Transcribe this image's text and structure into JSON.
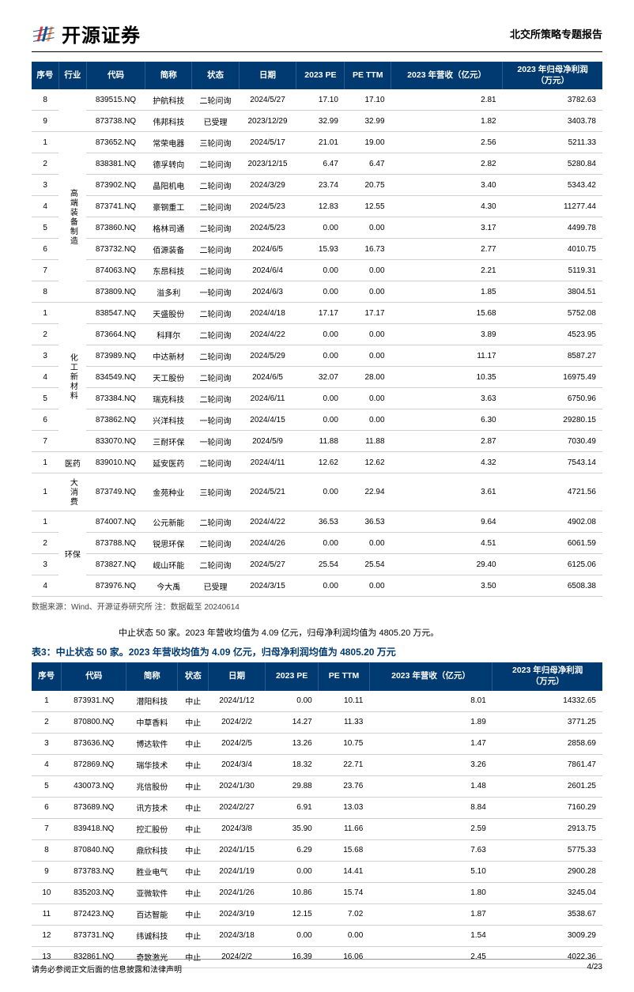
{
  "header": {
    "logo_text": "开源证券",
    "report_title": "北交所策略专题报告",
    "logo_colors": {
      "red": "#e63946",
      "blue": "#1d4e89",
      "orange": "#f4a261"
    }
  },
  "table1": {
    "header_bg": "#003a70",
    "header_color": "#ffffff",
    "columns": [
      "序号",
      "行业",
      "代码",
      "简称",
      "状态",
      "日期",
      "2023 PE",
      "PE TTM",
      "2023 年营收（亿元）",
      "2023 年归母净利润（万元）"
    ],
    "groups": [
      {
        "industry_span": null,
        "industry": "",
        "rows": [
          {
            "seq": "8",
            "code": "839515.NQ",
            "name": "护航科技",
            "status": "二轮问询",
            "date": "2024/5/27",
            "pe": "17.10",
            "ttm": "17.10",
            "rev": "2.81",
            "profit": "3782.63"
          },
          {
            "seq": "9",
            "code": "873738.NQ",
            "name": "伟邦科技",
            "status": "已受理",
            "date": "2023/12/29",
            "pe": "32.99",
            "ttm": "32.99",
            "rev": "1.82",
            "profit": "3403.78"
          }
        ]
      },
      {
        "industry": "高端装备制造",
        "rows": [
          {
            "seq": "1",
            "code": "873652.NQ",
            "name": "常荣电器",
            "status": "三轮问询",
            "date": "2024/5/17",
            "pe": "21.01",
            "ttm": "19.00",
            "rev": "2.56",
            "profit": "5211.33"
          },
          {
            "seq": "2",
            "code": "838381.NQ",
            "name": "德孚转向",
            "status": "二轮问询",
            "date": "2023/12/15",
            "pe": "6.47",
            "ttm": "6.47",
            "rev": "2.82",
            "profit": "5280.84"
          },
          {
            "seq": "3",
            "code": "873902.NQ",
            "name": "晶阳机电",
            "status": "二轮问询",
            "date": "2024/3/29",
            "pe": "23.74",
            "ttm": "20.75",
            "rev": "3.40",
            "profit": "5343.42"
          },
          {
            "seq": "4",
            "code": "873741.NQ",
            "name": "豪钢重工",
            "status": "二轮问询",
            "date": "2024/5/23",
            "pe": "12.83",
            "ttm": "12.55",
            "rev": "4.30",
            "profit": "11277.44"
          },
          {
            "seq": "5",
            "code": "873860.NQ",
            "name": "格林司通",
            "status": "二轮问询",
            "date": "2024/5/23",
            "pe": "0.00",
            "ttm": "0.00",
            "rev": "3.17",
            "profit": "4499.78"
          },
          {
            "seq": "6",
            "code": "873732.NQ",
            "name": "佰源装备",
            "status": "二轮问询",
            "date": "2024/6/5",
            "pe": "15.93",
            "ttm": "16.73",
            "rev": "2.77",
            "profit": "4010.75"
          },
          {
            "seq": "7",
            "code": "874063.NQ",
            "name": "东昂科技",
            "status": "二轮问询",
            "date": "2024/6/4",
            "pe": "0.00",
            "ttm": "0.00",
            "rev": "2.21",
            "profit": "5119.31"
          },
          {
            "seq": "8",
            "code": "873809.NQ",
            "name": "溢多利",
            "status": "一轮问询",
            "date": "2024/6/3",
            "pe": "0.00",
            "ttm": "0.00",
            "rev": "1.85",
            "profit": "3804.51"
          }
        ]
      },
      {
        "industry": "化工新材料",
        "rows": [
          {
            "seq": "1",
            "code": "838547.NQ",
            "name": "天盛股份",
            "status": "二轮问询",
            "date": "2024/4/18",
            "pe": "17.17",
            "ttm": "17.17",
            "rev": "15.68",
            "profit": "5752.08"
          },
          {
            "seq": "2",
            "code": "873664.NQ",
            "name": "科拜尔",
            "status": "二轮问询",
            "date": "2024/4/22",
            "pe": "0.00",
            "ttm": "0.00",
            "rev": "3.89",
            "profit": "4523.95"
          },
          {
            "seq": "3",
            "code": "873989.NQ",
            "name": "中达新材",
            "status": "二轮问询",
            "date": "2024/5/29",
            "pe": "0.00",
            "ttm": "0.00",
            "rev": "11.17",
            "profit": "8587.27"
          },
          {
            "seq": "4",
            "code": "834549.NQ",
            "name": "天工股份",
            "status": "二轮问询",
            "date": "2024/6/5",
            "pe": "32.07",
            "ttm": "28.00",
            "rev": "10.35",
            "profit": "16975.49"
          },
          {
            "seq": "5",
            "code": "873384.NQ",
            "name": "瑞克科技",
            "status": "二轮问询",
            "date": "2024/6/11",
            "pe": "0.00",
            "ttm": "0.00",
            "rev": "3.63",
            "profit": "6750.96"
          },
          {
            "seq": "6",
            "code": "873862.NQ",
            "name": "兴洋科技",
            "status": "一轮问询",
            "date": "2024/4/15",
            "pe": "0.00",
            "ttm": "0.00",
            "rev": "6.30",
            "profit": "29280.15"
          },
          {
            "seq": "7",
            "code": "833070.NQ",
            "name": "三耐环保",
            "status": "一轮问询",
            "date": "2024/5/9",
            "pe": "11.88",
            "ttm": "11.88",
            "rev": "2.87",
            "profit": "7030.49"
          }
        ]
      },
      {
        "industry": "医药",
        "rows": [
          {
            "seq": "1",
            "code": "839010.NQ",
            "name": "延安医药",
            "status": "二轮问询",
            "date": "2024/4/11",
            "pe": "12.62",
            "ttm": "12.62",
            "rev": "4.32",
            "profit": "7543.14"
          }
        ]
      },
      {
        "industry": "大消费",
        "rows": [
          {
            "seq": "1",
            "code": "873749.NQ",
            "name": "金苑种业",
            "status": "三轮问询",
            "date": "2024/5/21",
            "pe": "0.00",
            "ttm": "22.94",
            "rev": "3.61",
            "profit": "4721.56"
          }
        ]
      },
      {
        "industry": "环保",
        "rows": [
          {
            "seq": "1",
            "code": "874007.NQ",
            "name": "公元新能",
            "status": "二轮问询",
            "date": "2024/4/22",
            "pe": "36.53",
            "ttm": "36.53",
            "rev": "9.64",
            "profit": "4902.08"
          },
          {
            "seq": "2",
            "code": "873788.NQ",
            "name": "锐思环保",
            "status": "二轮问询",
            "date": "2024/4/26",
            "pe": "0.00",
            "ttm": "0.00",
            "rev": "4.51",
            "profit": "6061.59"
          },
          {
            "seq": "3",
            "code": "873827.NQ",
            "name": "岘山环能",
            "status": "二轮问询",
            "date": "2024/5/27",
            "pe": "25.54",
            "ttm": "25.54",
            "rev": "29.40",
            "profit": "6125.06"
          },
          {
            "seq": "4",
            "code": "873976.NQ",
            "name": "今大禹",
            "status": "已受理",
            "date": "2024/3/15",
            "pe": "0.00",
            "ttm": "0.00",
            "rev": "3.50",
            "profit": "6508.38"
          }
        ]
      }
    ]
  },
  "source_note": "数据来源：Wind、开源证券研究所  注：数据截至 20240614",
  "mid_text": "中止状态 50 家。2023 年营收均值为 4.09 亿元，归母净利润均值为 4805.20 万元。",
  "table2_caption": "表3：中止状态 50 家。2023 年营收均值为 4.09 亿元，归母净利润均值为 4805.20 万元",
  "table2": {
    "header_bg": "#003a70",
    "header_color": "#ffffff",
    "columns": [
      "序号",
      "代码",
      "简称",
      "状态",
      "日期",
      "2023 PE",
      "PE TTM",
      "2023 年营收（亿元）",
      "2023 年归母净利润（万元）"
    ],
    "rows": [
      {
        "seq": "1",
        "code": "873931.NQ",
        "name": "潜阳科技",
        "status": "中止",
        "date": "2024/1/12",
        "pe": "0.00",
        "ttm": "10.11",
        "rev": "8.01",
        "profit": "14332.65"
      },
      {
        "seq": "2",
        "code": "870800.NQ",
        "name": "中草香料",
        "status": "中止",
        "date": "2024/2/2",
        "pe": "14.27",
        "ttm": "11.33",
        "rev": "1.89",
        "profit": "3771.25"
      },
      {
        "seq": "3",
        "code": "873636.NQ",
        "name": "博达软件",
        "status": "中止",
        "date": "2024/2/5",
        "pe": "13.26",
        "ttm": "10.75",
        "rev": "1.47",
        "profit": "2858.69"
      },
      {
        "seq": "4",
        "code": "872869.NQ",
        "name": "瑞华技术",
        "status": "中止",
        "date": "2024/3/4",
        "pe": "18.32",
        "ttm": "22.71",
        "rev": "3.26",
        "profit": "7861.47"
      },
      {
        "seq": "5",
        "code": "430073.NQ",
        "name": "兆信股份",
        "status": "中止",
        "date": "2024/1/30",
        "pe": "29.88",
        "ttm": "23.76",
        "rev": "1.48",
        "profit": "2601.25"
      },
      {
        "seq": "6",
        "code": "873689.NQ",
        "name": "讯方技术",
        "status": "中止",
        "date": "2024/2/27",
        "pe": "6.91",
        "ttm": "13.03",
        "rev": "8.84",
        "profit": "7160.29"
      },
      {
        "seq": "7",
        "code": "839418.NQ",
        "name": "控汇股份",
        "status": "中止",
        "date": "2024/3/8",
        "pe": "35.90",
        "ttm": "11.66",
        "rev": "2.59",
        "profit": "2913.75"
      },
      {
        "seq": "8",
        "code": "870840.NQ",
        "name": "鼎欣科技",
        "status": "中止",
        "date": "2024/1/15",
        "pe": "6.29",
        "ttm": "15.68",
        "rev": "7.63",
        "profit": "5775.33"
      },
      {
        "seq": "9",
        "code": "873783.NQ",
        "name": "胜业电气",
        "status": "中止",
        "date": "2024/1/19",
        "pe": "0.00",
        "ttm": "14.41",
        "rev": "5.10",
        "profit": "2900.28"
      },
      {
        "seq": "10",
        "code": "835203.NQ",
        "name": "亚微软件",
        "status": "中止",
        "date": "2024/1/26",
        "pe": "10.86",
        "ttm": "15.74",
        "rev": "1.80",
        "profit": "3245.04"
      },
      {
        "seq": "11",
        "code": "872423.NQ",
        "name": "百达智能",
        "status": "中止",
        "date": "2024/3/19",
        "pe": "12.15",
        "ttm": "7.02",
        "rev": "1.87",
        "profit": "3538.67"
      },
      {
        "seq": "12",
        "code": "873731.NQ",
        "name": "纬诚科技",
        "status": "中止",
        "date": "2024/3/18",
        "pe": "0.00",
        "ttm": "0.00",
        "rev": "1.54",
        "profit": "3009.29"
      },
      {
        "seq": "13",
        "code": "832861.NQ",
        "name": "奇致激光",
        "status": "中止",
        "date": "2024/2/2",
        "pe": "16.39",
        "ttm": "16.06",
        "rev": "2.45",
        "profit": "4022.36"
      }
    ]
  },
  "footer": {
    "disclaimer": "请务必参阅正文后面的信息披露和法律声明",
    "page": "4/23"
  }
}
